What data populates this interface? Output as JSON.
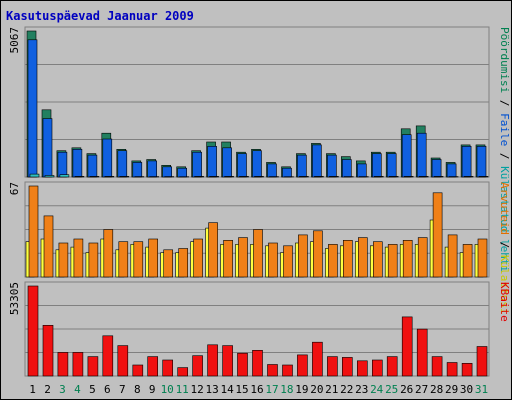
{
  "title": "Kasutuspäevad Jaanuar 2009",
  "panels": [
    {
      "max_label": "5067",
      "legend": [
        {
          "text": "Pöördumisi",
          "color": "#008050"
        },
        {
          "text": " / ",
          "color": "#000000"
        },
        {
          "text": "Faile",
          "color": "#0050d0"
        },
        {
          "text": " / ",
          "color": "#000000"
        },
        {
          "text": "Külastatud lehti",
          "color": "#00a0a0"
        }
      ]
    },
    {
      "max_label": "67",
      "legend": [
        {
          "text": "Arvuteid",
          "color": "#e07000"
        },
        {
          "text": " / ",
          "color": "#000000"
        },
        {
          "text": "Külastusi",
          "color": "#c8c800"
        }
      ]
    },
    {
      "max_label": "53305",
      "legend": [
        {
          "text": "KBaite",
          "color": "#e00000"
        }
      ]
    }
  ],
  "colors": {
    "background": "#c0c0c0",
    "title": "#0000c0",
    "hits": "#228060",
    "files": "#1060e0",
    "pages": "#30c0c0",
    "sites": "#f08018",
    "visits": "#ffff40",
    "kbytes": "#f01010",
    "weekend_day": "#008050"
  },
  "chart_data": {
    "type": "bar",
    "x": [
      "1",
      "2",
      "3",
      "4",
      "5",
      "6",
      "7",
      "8",
      "9",
      "10",
      "11",
      "12",
      "13",
      "14",
      "15",
      "16",
      "17",
      "18",
      "19",
      "20",
      "21",
      "22",
      "23",
      "24",
      "25",
      "26",
      "27",
      "28",
      "29",
      "30",
      "31"
    ],
    "weekend_days": [
      "3",
      "4",
      "10",
      "11",
      "17",
      "18",
      "24",
      "25",
      "31"
    ],
    "series": [
      {
        "name": "Pöördumisi",
        "panel": 0,
        "values": [
          5000,
          2300,
          900,
          1000,
          800,
          1500,
          950,
          550,
          600,
          400,
          350,
          900,
          1200,
          1200,
          850,
          950,
          500,
          350,
          800,
          1150,
          800,
          700,
          550,
          850,
          850,
          1650,
          1750,
          650,
          500,
          1100,
          1100
        ]
      },
      {
        "name": "Faile",
        "panel": 0,
        "values": [
          4700,
          2000,
          850,
          950,
          750,
          1300,
          900,
          500,
          550,
          350,
          300,
          850,
          1050,
          1000,
          800,
          900,
          450,
          300,
          750,
          1100,
          750,
          600,
          450,
          800,
          800,
          1450,
          1500,
          600,
          450,
          1050,
          1050
        ]
      },
      {
        "name": "Külastatud lehti",
        "panel": 0,
        "values": [
          100,
          50,
          80,
          20,
          20,
          20,
          20,
          15,
          15,
          15,
          10,
          20,
          20,
          20,
          20,
          20,
          15,
          10,
          20,
          20,
          20,
          15,
          15,
          20,
          20,
          20,
          20,
          20,
          15,
          20,
          20
        ]
      },
      {
        "name": "Arvuteid",
        "panel": 1,
        "values": [
          67,
          45,
          25,
          28,
          25,
          35,
          26,
          26,
          28,
          20,
          21,
          28,
          40,
          27,
          29,
          35,
          25,
          23,
          31,
          34,
          24,
          27,
          29,
          26,
          24,
          27,
          29,
          62,
          31,
          24,
          28
        ]
      },
      {
        "name": "Külastusi",
        "panel": 1,
        "values": [
          26,
          28,
          20,
          22,
          18,
          28,
          20,
          24,
          22,
          18,
          18,
          26,
          36,
          24,
          24,
          24,
          23,
          18,
          25,
          26,
          21,
          23,
          26,
          23,
          22,
          24,
          24,
          42,
          22,
          18,
          24
        ]
      },
      {
        "name": "KBaite",
        "panel": 2,
        "values": [
          53305,
          30000,
          14000,
          14000,
          11500,
          23800,
          18000,
          6500,
          11500,
          9500,
          5000,
          12000,
          18500,
          18000,
          13500,
          15200,
          6800,
          6500,
          12500,
          20000,
          11500,
          11000,
          9000,
          9500,
          11500,
          35000,
          27800,
          11500,
          8000,
          7500,
          17500
        ]
      }
    ]
  }
}
